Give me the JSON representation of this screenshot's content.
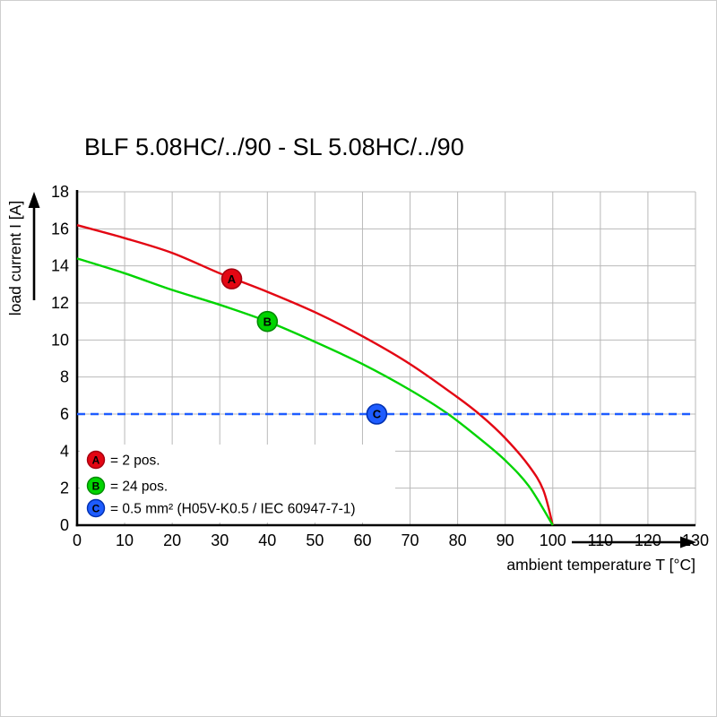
{
  "chart_data": {
    "type": "line",
    "title": "BLF 5.08HC/../90 - SL 5.08HC/../90",
    "xlabel": "ambient temperature T [°C]",
    "ylabel": "load current I [A]",
    "xlim": [
      0,
      130
    ],
    "ylim": [
      0,
      18
    ],
    "xticks": [
      0,
      10,
      20,
      30,
      40,
      50,
      60,
      70,
      80,
      90,
      100,
      110,
      120,
      130
    ],
    "yticks": [
      0,
      2,
      4,
      6,
      8,
      10,
      12,
      14,
      16,
      18
    ],
    "grid": true,
    "legend_position": "bottom-left-inside",
    "series": [
      {
        "id": "A",
        "kind": "curve",
        "color": "#e30613",
        "marker_stroke": "#a50010",
        "points": [
          [
            0,
            16.2
          ],
          [
            10,
            15.5
          ],
          [
            20,
            14.7
          ],
          [
            30,
            13.6
          ],
          [
            40,
            12.6
          ],
          [
            50,
            11.5
          ],
          [
            60,
            10.2
          ],
          [
            70,
            8.7
          ],
          [
            80,
            6.9
          ],
          [
            85,
            5.9
          ],
          [
            90,
            4.7
          ],
          [
            95,
            3.2
          ],
          [
            98,
            1.9
          ],
          [
            100,
            0
          ]
        ],
        "marker": {
          "x": 32.5,
          "y": 13.3,
          "label": "A"
        }
      },
      {
        "id": "B",
        "kind": "curve",
        "color": "#00d400",
        "marker_stroke": "#008a00",
        "points": [
          [
            0,
            14.4
          ],
          [
            10,
            13.6
          ],
          [
            20,
            12.7
          ],
          [
            30,
            11.9
          ],
          [
            40,
            11.0
          ],
          [
            50,
            9.9
          ],
          [
            60,
            8.7
          ],
          [
            70,
            7.3
          ],
          [
            78,
            6.0
          ],
          [
            85,
            4.6
          ],
          [
            90,
            3.5
          ],
          [
            95,
            2.1
          ],
          [
            100,
            0
          ]
        ],
        "marker": {
          "x": 40,
          "y": 11.0,
          "label": "B"
        }
      },
      {
        "id": "C",
        "kind": "hline",
        "color": "#1e5cff",
        "marker_stroke": "#0030b0",
        "dashed": true,
        "y": 6,
        "marker": {
          "x": 63,
          "y": 6,
          "label": "C"
        }
      }
    ],
    "legend": [
      {
        "badge": "A",
        "color": "#e30613",
        "stroke": "#a50010",
        "text": "= 2 pos."
      },
      {
        "badge": "B",
        "color": "#00d400",
        "stroke": "#008a00",
        "text": "= 24 pos."
      },
      {
        "badge": "C",
        "color": "#1e5cff",
        "stroke": "#0030b0",
        "text": "= 0.5 mm² (H05V-K0.5 / IEC 60947-7-1)"
      }
    ]
  }
}
